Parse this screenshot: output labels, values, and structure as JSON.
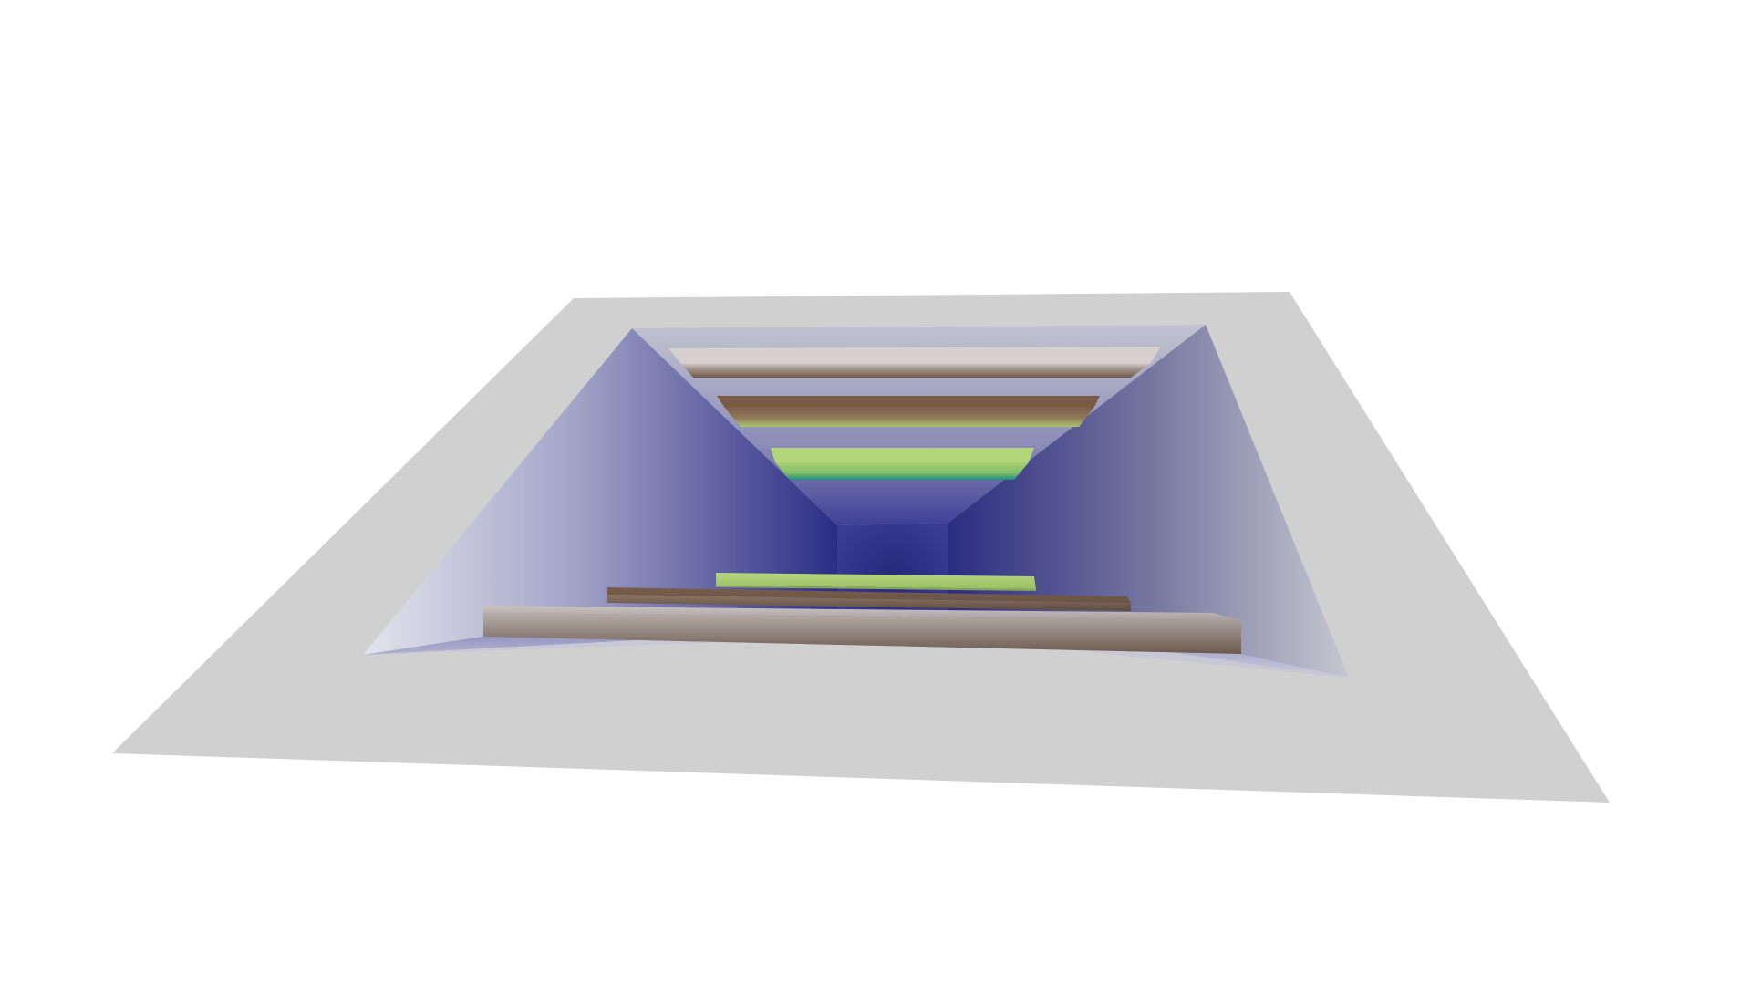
{
  "scene": {
    "background_color": "#ffffff",
    "plate_color": "#d0d0d0",
    "pit_rim_color": "#c9cbd6",
    "pit_deep_color": "#272a7d",
    "pit_mid_color": "#6e6fa8",
    "pit_light_color": "#d8d9e4",
    "step_top_brown": "#7b5f4c",
    "step_top_light": "#c4bdbb",
    "step_top_green": "#a4c96a",
    "step_edge_teal": "#2a9a78",
    "step_front_dark": "#6d5a4d",
    "step_front_light": "#b7aeaa"
  }
}
